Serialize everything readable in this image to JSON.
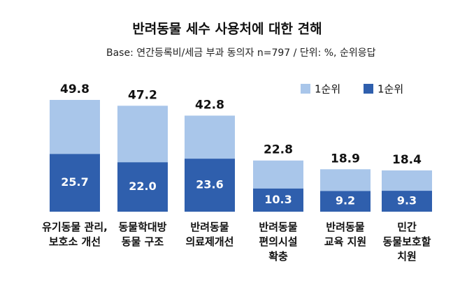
{
  "chart_data": {
    "type": "bar",
    "title": "반려동물 세수 사용처에 대한 견해",
    "subtitle": "Base: 연간등록비/세금 부과 동의자 n=797 / 단위: %, 순위응답",
    "categories": [
      "유기동물 관리,\n보호소 개선",
      "동물학대방\n동물 구조",
      "반려동물\n의료제개선",
      "반려동물\n편의시설\n확충",
      "반려동물\n교육 지원",
      "민간\n동물보호할\n치원"
    ],
    "series": [
      {
        "name": "1순위",
        "color": "#a9c6ea",
        "values": [
          49.8,
          47.2,
          42.8,
          22.8,
          18.9,
          18.4
        ]
      },
      {
        "name": "1순위",
        "color": "#2f5fad",
        "values": [
          25.7,
          22.0,
          23.6,
          10.3,
          9.2,
          9.3
        ],
        "value_labels": [
          "25.7",
          "22.0",
          "23.6",
          "10.3",
          "9.2",
          "9.3"
        ]
      }
    ]
  }
}
